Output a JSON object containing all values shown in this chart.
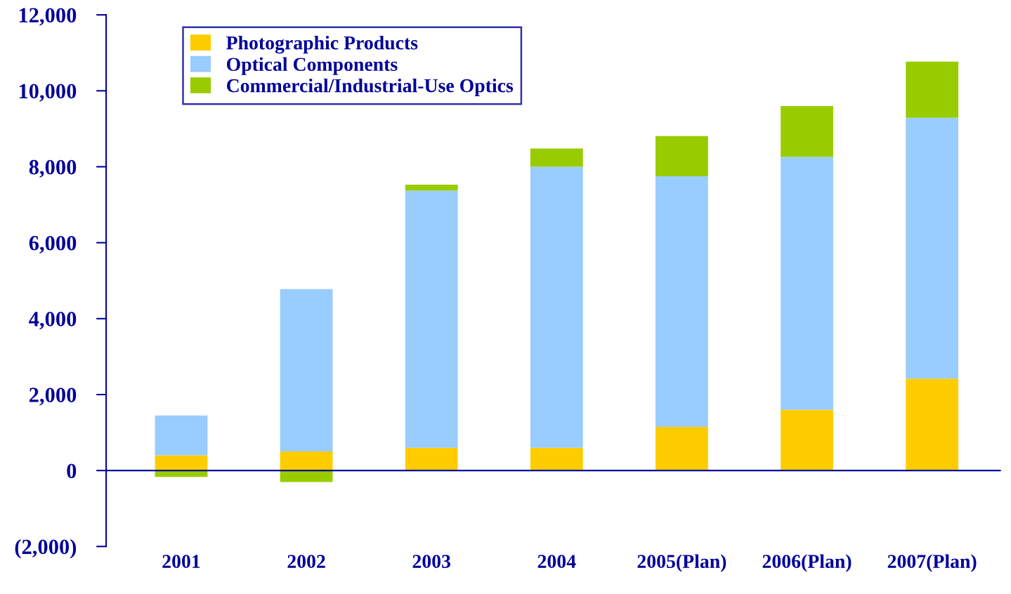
{
  "chart_data": {
    "type": "bar",
    "stacked": true,
    "categories": [
      "2001",
      "2002",
      "2003",
      "2004",
      "2005(Plan)",
      "2006(Plan)",
      "2007(Plan)"
    ],
    "series": [
      {
        "name": "Photographic Products",
        "color": "#ffcc00",
        "values": [
          400,
          500,
          600,
          600,
          1150,
          1600,
          2420
        ]
      },
      {
        "name": "Optical Components",
        "color": "#99ccff",
        "values": [
          1050,
          4280,
          6770,
          7400,
          6600,
          6660,
          6870
        ]
      },
      {
        "name": "Commercial/Industrial-Use Optics",
        "color": "#99cc00",
        "values": [
          -170,
          -300,
          160,
          480,
          1060,
          1340,
          1480
        ]
      }
    ],
    "ylim": [
      -2000,
      12000
    ],
    "yticks": [
      {
        "value": -2000,
        "label": "(2,000)"
      },
      {
        "value": 0,
        "label": "0"
      },
      {
        "value": 2000,
        "label": "2,000"
      },
      {
        "value": 4000,
        "label": "4,000"
      },
      {
        "value": 6000,
        "label": "6,000"
      },
      {
        "value": 8000,
        "label": "8,000"
      },
      {
        "value": 10000,
        "label": "10,000"
      },
      {
        "value": 12000,
        "label": "12,000"
      }
    ],
    "ref_lines": [
      {
        "axis": "y",
        "value": 0,
        "color": "#000099"
      }
    ],
    "grid": false,
    "legend": "top left"
  }
}
